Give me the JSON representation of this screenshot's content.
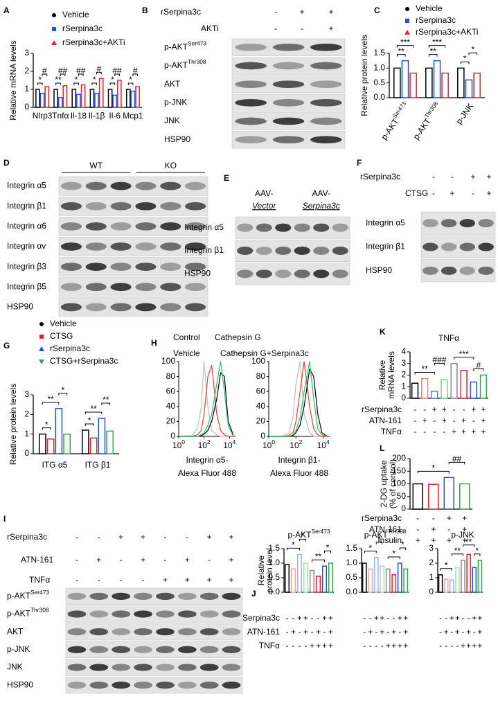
{
  "panel_labels": [
    "A",
    "B",
    "C",
    "D",
    "E",
    "F",
    "G",
    "H",
    "I",
    "J",
    "K",
    "L"
  ],
  "chart_data": [
    {
      "type": "bar",
      "ylabel": "Relative mRNA levels",
      "categories": [
        "Nlrp3",
        "Tnfα",
        "Il-18",
        "Il-1β",
        "Il-6",
        "Mcp1"
      ],
      "series": [
        {
          "name": "Vehicle",
          "color": "#000000",
          "values": [
            1.0,
            1.0,
            1.0,
            1.0,
            1.0,
            1.0
          ]
        },
        {
          "name": "rSerpina3c",
          "color": "#1f4fe0",
          "values": [
            0.78,
            0.55,
            0.72,
            0.78,
            0.68,
            0.9
          ]
        },
        {
          "name": "rSerpina3c+AKTi",
          "color": "#e8202a",
          "values": [
            1.15,
            1.2,
            1.25,
            1.6,
            1.5,
            1.15
          ]
        }
      ],
      "ylim": [
        0,
        3
      ],
      "yticks": [
        0,
        1,
        2,
        3
      ],
      "brackets": [
        {
          "text": "*",
          "category": 0,
          "from": 0,
          "to": 1
        },
        {
          "text": "#",
          "category": 0,
          "from": 1,
          "to": 2
        },
        {
          "text": "**",
          "category": 1,
          "from": 0,
          "to": 1
        },
        {
          "text": "##",
          "category": 1,
          "from": 1,
          "to": 2
        },
        {
          "text": "*",
          "category": 2,
          "from": 0,
          "to": 1
        },
        {
          "text": "##",
          "category": 2,
          "from": 1,
          "to": 2
        },
        {
          "text": "*",
          "category": 3,
          "from": 0,
          "to": 1
        },
        {
          "text": "#",
          "category": 3,
          "from": 1,
          "to": 2
        },
        {
          "text": "*",
          "category": 4,
          "from": 0,
          "to": 1
        },
        {
          "text": "##",
          "category": 4,
          "from": 1,
          "to": 2
        },
        {
          "text": "*",
          "category": 5,
          "from": 0,
          "to": 1
        },
        {
          "text": "#",
          "category": 5,
          "from": 1,
          "to": 2
        }
      ]
    },
    {
      "type": "bar",
      "ylabel": "Relative protein levels",
      "categories": [
        "p-AKT",
        "p-AKT",
        "p-JNK"
      ],
      "category_sups": [
        "Ser473",
        "Thr308",
        null
      ],
      "series": [
        {
          "name": "Vehicle",
          "color": "#000000",
          "values": [
            1.0,
            1.0,
            1.0
          ]
        },
        {
          "name": "rSerpina3c",
          "color": "#1f4fe0",
          "values": [
            1.25,
            1.25,
            0.6
          ]
        },
        {
          "name": "rSerpina3c+AKTi",
          "color": "#e8202a",
          "values": [
            0.83,
            0.83,
            0.83
          ]
        }
      ],
      "ylim": [
        0,
        1.5
      ],
      "yticks": [
        {
          "value": 0,
          "label": "0.0"
        },
        {
          "value": 0.5,
          "label": "0.5"
        },
        {
          "value": 1,
          "label": "1.0"
        },
        {
          "value": 1.5,
          "label": "1.5"
        }
      ],
      "brackets": [
        {
          "text": "**",
          "category": 0,
          "from": 0,
          "to": 1
        },
        {
          "text": "***",
          "category": 0,
          "from": 0,
          "to": 2
        },
        {
          "text": "**",
          "category": 1,
          "from": 0,
          "to": 1
        },
        {
          "text": "***",
          "category": 1,
          "from": 0,
          "to": 2
        },
        {
          "text": "*",
          "category": 2,
          "from": 0,
          "to": 1
        },
        {
          "text": "*",
          "category": 2,
          "from": 1,
          "to": 2
        }
      ]
    },
    {
      "type": "bar",
      "ylabel": "Relative protein levels",
      "categories": [
        "ITG α5",
        "ITG β1"
      ],
      "series": [
        {
          "name": "Vehicle",
          "color": "#000000",
          "values": [
            1.0,
            1.2
          ]
        },
        {
          "name": "CTSG",
          "color": "#e8202a",
          "values": [
            0.75,
            0.8
          ]
        },
        {
          "name": "rSerpina3c",
          "color": "#1f4fe0",
          "values": [
            2.3,
            1.8
          ]
        },
        {
          "name": "CTSG+rSerpina3c",
          "color": "#2aa84a",
          "values": [
            1.0,
            1.15
          ]
        }
      ],
      "ylim": [
        0,
        3
      ],
      "yticks": [
        0,
        1,
        2,
        3
      ],
      "brackets": [
        {
          "text": "*",
          "category": 0,
          "from": 0,
          "to": 1
        },
        {
          "text": "**",
          "category": 0,
          "from": 0,
          "to": 2
        },
        {
          "text": "*",
          "category": 0,
          "from": 2,
          "to": 3
        },
        {
          "text": "*",
          "category": 1,
          "from": 0,
          "to": 1
        },
        {
          "text": "**",
          "category": 1,
          "from": 0,
          "to": 2
        },
        {
          "text": "**",
          "category": 1,
          "from": 2,
          "to": 3
        }
      ]
    },
    {
      "type": "line",
      "xlabel": [
        "Integrin α5-",
        "Alexa Fluor 488"
      ],
      "log_x": true,
      "x": [
        1,
        10,
        30,
        60,
        100,
        200,
        400,
        1000,
        2000,
        4000,
        8000,
        20000
      ],
      "series": [
        {
          "name": "Control",
          "color": "#bdbdbd",
          "values": [
            0,
            1,
            10,
            40,
            100,
            40,
            8,
            2,
            0,
            0,
            0,
            0
          ]
        },
        {
          "name": "Cathepsin G",
          "color": "#f03a3a",
          "values": [
            0,
            0,
            2,
            8,
            30,
            80,
            95,
            30,
            8,
            2,
            0,
            0
          ]
        },
        {
          "name": "Vehicle",
          "color": "#000000",
          "values": [
            0,
            0,
            0,
            1,
            3,
            8,
            20,
            50,
            85,
            80,
            20,
            2
          ]
        },
        {
          "name": "Cathepsin G+Serpina3c",
          "color": "#22c46a",
          "values": [
            0,
            0,
            0,
            2,
            5,
            15,
            30,
            70,
            100,
            60,
            15,
            0
          ]
        }
      ],
      "xlim": [
        1,
        30000
      ],
      "xticks": [
        {
          "value": 1,
          "label": "10",
          "sup": "0"
        },
        {
          "value": 100,
          "label": "10",
          "sup": "2"
        },
        {
          "value": 10000,
          "label": "10",
          "sup": "4"
        }
      ],
      "ylim": [
        0,
        100
      ],
      "yticks": [
        0,
        20,
        40,
        60,
        80,
        100
      ]
    },
    {
      "type": "line",
      "xlabel": [
        "Integrin β1-",
        "Alexa Fluor 488"
      ],
      "log_x": true,
      "x": [
        1,
        10,
        30,
        60,
        100,
        200,
        400,
        1000,
        2000,
        4000,
        8000,
        20000
      ],
      "series": [
        {
          "color": "#bdbdbd",
          "values": [
            0,
            0,
            5,
            25,
            70,
            100,
            30,
            5,
            0,
            0,
            0,
            0
          ]
        },
        {
          "color": "#f03a3a",
          "values": [
            0,
            0,
            1,
            5,
            20,
            60,
            100,
            40,
            10,
            2,
            0,
            0
          ]
        },
        {
          "color": "#000000",
          "values": [
            0,
            0,
            0,
            1,
            5,
            15,
            40,
            90,
            80,
            30,
            5,
            0
          ]
        },
        {
          "color": "#22c46a",
          "values": [
            0,
            0,
            0,
            2,
            8,
            25,
            60,
            100,
            50,
            10,
            2,
            0
          ]
        }
      ],
      "xlim": [
        1,
        30000
      ],
      "xticks": [
        {
          "value": 1,
          "label": "10",
          "sup": "0"
        },
        {
          "value": 100,
          "label": "10",
          "sup": "2"
        },
        {
          "value": 10000,
          "label": "10",
          "sup": "4"
        }
      ],
      "ylim": [
        0,
        100
      ],
      "yticks": [
        0,
        20,
        40,
        60,
        80,
        100
      ]
    },
    {
      "type": "bar",
      "title": "TNFα",
      "ylabel": [
        "Relative",
        "mRNA levels"
      ],
      "values": [
        1.3,
        1.7,
        0.6,
        1.6,
        3.0,
        2.4,
        1.4,
        2.0
      ],
      "colors": [
        "#000000",
        "#f08080",
        "#5b7fe8",
        "#7ccf8a",
        "#888888",
        "#e8202a",
        "#1f4fe0",
        "#2aa84a"
      ],
      "ylim": [
        0,
        4
      ],
      "yticks": [
        0,
        1,
        2,
        3,
        4
      ],
      "brackets": [
        {
          "text": "**",
          "from": 0,
          "to": 2
        },
        {
          "text": "###",
          "from": 2,
          "to": 3
        },
        {
          "text": "***",
          "from": 4,
          "to": 6
        },
        {
          "text": "#",
          "from": 6,
          "to": 7
        }
      ],
      "conditions": [
        {
          "label": "rSerpina3c",
          "signs": [
            "-",
            "-",
            "+",
            "+",
            "-",
            "-",
            "+",
            "+"
          ]
        },
        {
          "label": "ATN-161",
          "signs": [
            "-",
            "+",
            "-",
            "+",
            "-",
            "+",
            "-",
            "+"
          ]
        },
        {
          "label": "TNFα",
          "signs": [
            "-",
            "-",
            "-",
            "-",
            "+",
            "+",
            "+",
            "+"
          ]
        }
      ]
    },
    {
      "type": "bar",
      "ylabel": [
        "2-DG uptake",
        "(% of control)"
      ],
      "values": [
        100,
        98,
        125,
        100
      ],
      "colors": [
        "#000000",
        "#e8202a",
        "#1f4fe0",
        "#2aa84a"
      ],
      "ylim": [
        0,
        200
      ],
      "yticks": [
        0,
        50,
        100,
        150,
        200
      ],
      "brackets": [
        {
          "text": "*",
          "from": 0,
          "to": 2
        },
        {
          "text": "##",
          "from": 2,
          "to": 3
        }
      ],
      "conditions": [
        {
          "label": "rSerpina3c",
          "signs": [
            "-",
            "-",
            "+",
            "+"
          ]
        },
        {
          "label": "ATN-161",
          "signs": [
            "-",
            "+",
            "-",
            "+"
          ]
        },
        {
          "label": "Insulin",
          "signs": [
            "+",
            "+",
            "+",
            "+"
          ]
        }
      ]
    },
    {
      "type": "bar",
      "title": "p-AKT",
      "title_sup": "Ser473",
      "ylabel": [
        "Relative",
        "protein level"
      ],
      "values": [
        0.95,
        0.8,
        1.3,
        1.0,
        0.75,
        0.55,
        0.9,
        1.0
      ],
      "colors": [
        "#000000",
        "#f4a6a6",
        "#9bb2f0",
        "#a8e0b2",
        "#888888",
        "#e8202a",
        "#1f4fe0",
        "#2aa84a"
      ],
      "ylim": [
        0,
        1.5
      ],
      "yticks": [
        {
          "value": 0,
          "label": "0.0"
        },
        {
          "value": 0.5,
          "label": "0.5"
        },
        {
          "value": 1,
          "label": "1.0"
        },
        {
          "value": 1.5,
          "label": "1.5"
        }
      ],
      "brackets": [
        {
          "text": "*",
          "from": 0,
          "to": 2
        },
        {
          "text": "*",
          "from": 2,
          "to": 3
        },
        {
          "text": "**",
          "from": 4,
          "to": 6
        },
        {
          "text": "*",
          "from": 6,
          "to": 7
        }
      ],
      "conditions": [
        {
          "label": "rSerpina3c",
          "signs": [
            "-",
            "-",
            "+",
            "+",
            "-",
            "-",
            "+",
            "+"
          ]
        },
        {
          "label": "ATN-161",
          "signs": [
            "-",
            "+",
            "-",
            "+",
            "-",
            "+",
            "-",
            "+"
          ]
        },
        {
          "label": "TNFα",
          "signs": [
            "-",
            "-",
            "-",
            "-",
            "+",
            "+",
            "+",
            "+"
          ]
        }
      ]
    },
    {
      "type": "bar",
      "title": "p-AKT",
      "title_sup": "Thr308",
      "values": [
        1.0,
        0.8,
        1.2,
        0.9,
        0.8,
        0.6,
        1.0,
        0.8
      ],
      "colors": [
        "#000000",
        "#f4a6a6",
        "#9bb2f0",
        "#a8e0b2",
        "#888888",
        "#e8202a",
        "#1f4fe0",
        "#2aa84a"
      ],
      "ylim": [
        0,
        1.5
      ],
      "yticks": [
        {
          "value": 0,
          "label": "0.0"
        },
        {
          "value": 0.5,
          "label": "0.5"
        },
        {
          "value": 1,
          "label": "1.0"
        },
        {
          "value": 1.5,
          "label": "1.5"
        }
      ],
      "brackets": [
        {
          "text": "*",
          "from": 0,
          "to": 2
        },
        {
          "text": "*",
          "from": 2,
          "to": 3
        },
        {
          "text": "*",
          "from": 4,
          "to": 6
        },
        {
          "text": "*",
          "from": 6,
          "to": 7
        }
      ]
    },
    {
      "type": "bar",
      "title": "p-JNK",
      "values": [
        1.2,
        0.9,
        0.85,
        1.7,
        2.2,
        2.6,
        1.7,
        2.2
      ],
      "colors": [
        "#000000",
        "#f4a6a6",
        "#9bb2f0",
        "#a8e0b2",
        "#888888",
        "#e8202a",
        "#1f4fe0",
        "#2aa84a"
      ],
      "ylim": [
        0,
        3
      ],
      "yticks": [
        0,
        1,
        2,
        3
      ],
      "brackets": [
        {
          "text": "*",
          "from": 0,
          "to": 2
        },
        {
          "text": "**",
          "from": 2,
          "to": 4
        },
        {
          "text": "**",
          "from": 4,
          "to": 6
        },
        {
          "text": "*",
          "from": 6,
          "to": 7
        }
      ]
    }
  ],
  "blots": [
    {
      "conditions": [
        {
          "label": "rSerpina3c",
          "signs": [
            "-",
            "+",
            "+"
          ]
        },
        {
          "label": "AKTi",
          "signs": [
            "-",
            "-",
            "+"
          ]
        }
      ],
      "rows": [
        {
          "label": "p-AKT",
          "sup": "Ser473"
        },
        {
          "label": "p-AKT",
          "sup": "Thr308"
        },
        {
          "label": "AKT"
        },
        {
          "label": "p-JNK"
        },
        {
          "label": "JNK"
        },
        {
          "label": "HSP90"
        }
      ]
    },
    {
      "groups": [
        {
          "label": "WT"
        },
        {
          "label": "KO"
        }
      ],
      "rows": [
        {
          "label": "Integrin α5"
        },
        {
          "label": "Integrin β1"
        },
        {
          "label": "Integrin α6"
        },
        {
          "label": "Integrin αv"
        },
        {
          "label": "Integrin β3"
        },
        {
          "label": "Integrin β5"
        },
        {
          "label": "HSP90"
        }
      ]
    },
    {
      "groups": [
        {
          "label": "AAV-",
          "sub": "Vector"
        },
        {
          "label": "AAV-",
          "sub": "Serpina3c"
        }
      ],
      "rows": [
        {
          "label": "Integrin α5"
        },
        {
          "label": "Integrin β1"
        },
        {
          "label": "HSP90"
        }
      ]
    },
    {
      "conditions": [
        {
          "label": "rSerpina3c",
          "signs": [
            "-",
            "-",
            "+",
            "+"
          ]
        },
        {
          "label": "CTSG",
          "signs": [
            "-",
            "+",
            "-",
            "+"
          ]
        }
      ],
      "rows": [
        {
          "label": "Integrin α5"
        },
        {
          "label": "Integrin β1"
        },
        {
          "label": "HSP90"
        }
      ]
    },
    {
      "conditions": [
        {
          "label": "rSerpina3c",
          "signs": [
            "-",
            "-",
            "+",
            "+",
            "-",
            "-",
            "+",
            "+"
          ]
        },
        {
          "label": "ATN-161",
          "signs": [
            "-",
            "+",
            "-",
            "+",
            "-",
            "+",
            "-",
            "+"
          ]
        },
        {
          "label": "TNFα",
          "signs": [
            "-",
            "-",
            "-",
            "-",
            "+",
            "+",
            "+",
            "+"
          ]
        }
      ],
      "rows": [
        {
          "label": "p-AKT",
          "sup": "Ser473"
        },
        {
          "label": "p-AKT",
          "sup": "Thr308"
        },
        {
          "label": "AKT"
        },
        {
          "label": "p-JNK"
        },
        {
          "label": "JNK"
        },
        {
          "label": "HSP90"
        }
      ]
    }
  ]
}
